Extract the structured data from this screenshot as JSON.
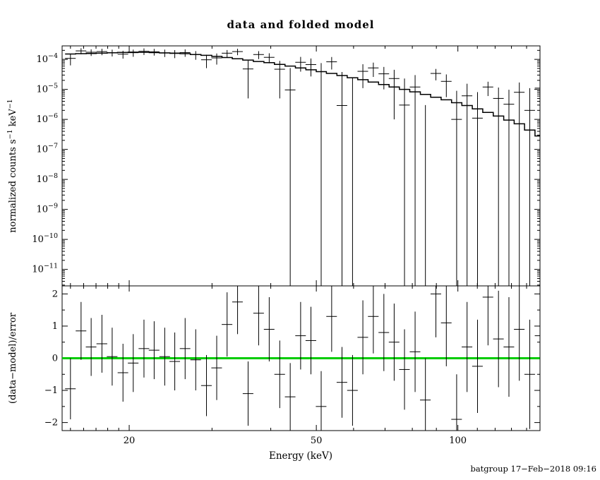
{
  "page": {
    "background": "#ffffff"
  },
  "watermark": {
    "text": "batgroup 17−Feb−2018 09:16",
    "color": "#0000ee"
  },
  "chart_data": [
    {
      "type": "scatter",
      "panel": "spectrum",
      "title": "data and folded model",
      "xlabel": "Energy (keV)",
      "ylabel": "normalized counts s^-1 keV^-1",
      "xscale": "log",
      "yscale": "log",
      "grid": false,
      "legend": "none",
      "xlim": [
        14.4,
        149.5
      ],
      "ylim_exp": [
        -11.55,
        -3.55
      ],
      "x_major_ticks": [
        20,
        50,
        100
      ],
      "x_minor_ticks": [
        15,
        16,
        17,
        18,
        19,
        30,
        40,
        60,
        70,
        80,
        90,
        110,
        120,
        130,
        140
      ],
      "y_decade_exponents": [
        -4,
        -5,
        -6,
        -7,
        -8,
        -9,
        -10,
        -11
      ],
      "marker_color": "#000000",
      "model_color": "#000000",
      "series_columns": [
        "energy_keV",
        "half_width_keV",
        "counts",
        "counts_err",
        "model_counts"
      ],
      "bins": [
        [
          15.0,
          0.39,
          0.000108,
          4.5e-05,
          0.000151
        ],
        [
          15.8,
          0.41,
          0.000192,
          4.3e-05,
          0.000155
        ],
        [
          16.6,
          0.43,
          0.000173,
          4.3e-05,
          0.000158
        ],
        [
          17.5,
          0.46,
          0.000182,
          4.4e-05,
          0.000162
        ],
        [
          18.4,
          0.48,
          0.000168,
          4.3e-05,
          0.000166
        ],
        [
          19.4,
          0.5,
          0.00015,
          4.4e-05,
          0.00017
        ],
        [
          20.4,
          0.53,
          0.000167,
          4.5e-05,
          0.000174
        ],
        [
          21.5,
          0.56,
          0.000186,
          4.6e-05,
          0.000172
        ],
        [
          22.6,
          0.59,
          0.000179,
          4.5e-05,
          0.000168
        ],
        [
          23.8,
          0.62,
          0.000166,
          4.6e-05,
          0.000164
        ],
        [
          25.0,
          0.65,
          0.000157,
          4.7e-05,
          0.000162
        ],
        [
          26.3,
          0.68,
          0.000169,
          4.7e-05,
          0.000155
        ],
        [
          27.7,
          0.72,
          0.000143,
          4.6e-05,
          0.000145
        ],
        [
          29.2,
          0.76,
          9.7e-05,
          4.6e-05,
          0.000136
        ],
        [
          30.7,
          0.8,
          0.000112,
          4.5e-05,
          0.000126
        ],
        [
          32.3,
          0.84,
          0.000161,
          4.4e-05,
          0.000115
        ],
        [
          34.0,
          0.88,
          0.000182,
          4.4e-05,
          0.000105
        ],
        [
          35.8,
          0.93,
          4.8e-05,
          4.3e-05,
          9.5e-05
        ],
        [
          37.7,
          0.98,
          0.000145,
          4.3e-05,
          8.5e-05
        ],
        [
          39.7,
          1.03,
          0.000117,
          4.3e-05,
          7.8e-05
        ],
        [
          41.8,
          1.09,
          4.7e-05,
          4.2e-05,
          6.8e-05
        ],
        [
          44.0,
          1.14,
          9.6e-06,
          4.2e-05,
          6e-05
        ],
        [
          46.3,
          1.2,
          8e-05,
          4.1e-05,
          5.2e-05
        ],
        [
          48.7,
          1.27,
          6.7e-05,
          4e-05,
          4.5e-05
        ],
        [
          51.2,
          1.33,
          -2e-05,
          9.5e-05,
          3.9e-05
        ],
        [
          53.9,
          1.4,
          8.3e-05,
          3.7e-05,
          3.4e-05
        ],
        [
          56.7,
          1.47,
          2.9e-06,
          3.5e-05,
          2.9e-05
        ],
        [
          59.7,
          1.55,
          -7e-06,
          3.2e-05,
          2.45e-05
        ],
        [
          62.8,
          1.63,
          4e-05,
          2.9e-05,
          2.1e-05
        ],
        [
          66.1,
          1.72,
          5.2e-05,
          2.6e-05,
          1.75e-05
        ],
        [
          69.6,
          1.81,
          3.3e-05,
          2.3e-05,
          1.45e-05
        ],
        [
          73.2,
          1.9,
          2.3e-05,
          2.2e-05,
          1.2e-05
        ],
        [
          77.0,
          2.0,
          3e-06,
          2e-05,
          1e-05
        ],
        [
          81.1,
          2.11,
          1.2e-05,
          1.8e-05,
          8.3e-06
        ],
        [
          85.3,
          2.22,
          -1.4e-05,
          1.7e-05,
          6.8e-06
        ],
        [
          89.8,
          2.33,
          3.4e-05,
          1.4e-05,
          5.5e-06
        ],
        [
          94.5,
          2.46,
          1.85e-05,
          1.3e-05,
          4.5e-06
        ],
        [
          99.4,
          2.58,
          1e-06,
          8e-06,
          3.6e-06
        ],
        [
          104.6,
          2.72,
          6.1e-06,
          9.3e-06,
          2.9e-06
        ],
        [
          110.1,
          2.86,
          1.1e-06,
          7e-06,
          2.24e-06
        ],
        [
          115.9,
          3.01,
          1.2e-05,
          6e-06,
          1.7e-06
        ],
        [
          122.0,
          3.17,
          5e-06,
          6.5e-06,
          1.29e-06
        ],
        [
          128.4,
          3.34,
          3.2e-06,
          6.5e-06,
          9.5e-07
        ],
        [
          135.1,
          3.51,
          8e-06,
          9e-06,
          7.1e-07
        ],
        [
          142.2,
          3.7,
          2e-06,
          9e-06,
          4.4e-07
        ],
        [
          149.6,
          3.89,
          1.1e-05,
          1.3e-05,
          2.8e-07
        ]
      ]
    },
    {
      "type": "scatter",
      "panel": "residuals",
      "ylabel": "(data−model)/error",
      "yscale": "linear",
      "ylim": [
        -2.25,
        2.25
      ],
      "y_major_ticks": [
        -2,
        -1,
        0,
        1,
        2
      ],
      "zero_line": {
        "value": 0,
        "color": "#00cc00"
      },
      "series_columns": [
        "energy_keV",
        "half_width_keV",
        "residual",
        "residual_err"
      ],
      "bins": [
        [
          15.0,
          0.39,
          -0.95,
          0.95
        ],
        [
          15.8,
          0.41,
          0.85,
          0.9
        ],
        [
          16.6,
          0.43,
          0.35,
          0.9
        ],
        [
          17.5,
          0.46,
          0.45,
          0.9
        ],
        [
          18.4,
          0.48,
          0.05,
          0.9
        ],
        [
          19.4,
          0.5,
          -0.45,
          0.9
        ],
        [
          20.4,
          0.53,
          -0.15,
          0.9
        ],
        [
          21.5,
          0.56,
          0.3,
          0.9
        ],
        [
          22.6,
          0.59,
          0.25,
          0.9
        ],
        [
          23.8,
          0.62,
          0.05,
          0.9
        ],
        [
          25.0,
          0.65,
          -0.1,
          0.9
        ],
        [
          26.3,
          0.68,
          0.3,
          0.95
        ],
        [
          27.7,
          0.72,
          -0.05,
          0.95
        ],
        [
          29.2,
          0.76,
          -0.85,
          0.95
        ],
        [
          30.7,
          0.8,
          -0.3,
          1.0
        ],
        [
          32.3,
          0.84,
          1.05,
          1.0
        ],
        [
          34.0,
          0.88,
          1.75,
          1.0
        ],
        [
          35.8,
          0.93,
          -1.1,
          1.0
        ],
        [
          37.7,
          0.98,
          1.4,
          1.0
        ],
        [
          39.7,
          1.03,
          0.9,
          1.0
        ],
        [
          41.8,
          1.09,
          -0.5,
          1.05
        ],
        [
          44.0,
          1.14,
          -1.2,
          1.05
        ],
        [
          46.3,
          1.2,
          0.7,
          1.05
        ],
        [
          48.7,
          1.27,
          0.55,
          1.05
        ],
        [
          51.2,
          1.33,
          -1.5,
          1.1
        ],
        [
          53.9,
          1.4,
          1.3,
          1.1
        ],
        [
          56.7,
          1.47,
          -0.75,
          1.1
        ],
        [
          59.7,
          1.55,
          -1.0,
          1.1
        ],
        [
          62.8,
          1.63,
          0.65,
          1.15
        ],
        [
          66.1,
          1.72,
          1.3,
          1.15
        ],
        [
          69.6,
          1.81,
          0.8,
          1.2
        ],
        [
          73.2,
          1.9,
          0.5,
          1.2
        ],
        [
          77.0,
          2.0,
          -0.35,
          1.25
        ],
        [
          81.1,
          2.11,
          0.2,
          1.25
        ],
        [
          85.3,
          2.22,
          -1.3,
          1.3
        ],
        [
          89.8,
          2.33,
          2.0,
          1.35
        ],
        [
          94.5,
          2.46,
          1.1,
          1.35
        ],
        [
          99.4,
          2.58,
          -1.9,
          1.4
        ],
        [
          104.6,
          2.72,
          0.35,
          1.4
        ],
        [
          110.1,
          2.86,
          -0.25,
          1.45
        ],
        [
          115.9,
          3.01,
          1.9,
          1.5
        ],
        [
          122.0,
          3.17,
          0.6,
          1.5
        ],
        [
          128.4,
          3.34,
          0.35,
          1.55
        ],
        [
          135.1,
          3.51,
          0.9,
          1.6
        ],
        [
          142.2,
          3.7,
          -0.5,
          1.7
        ],
        [
          149.6,
          3.89,
          0.7,
          1.8
        ]
      ]
    }
  ]
}
